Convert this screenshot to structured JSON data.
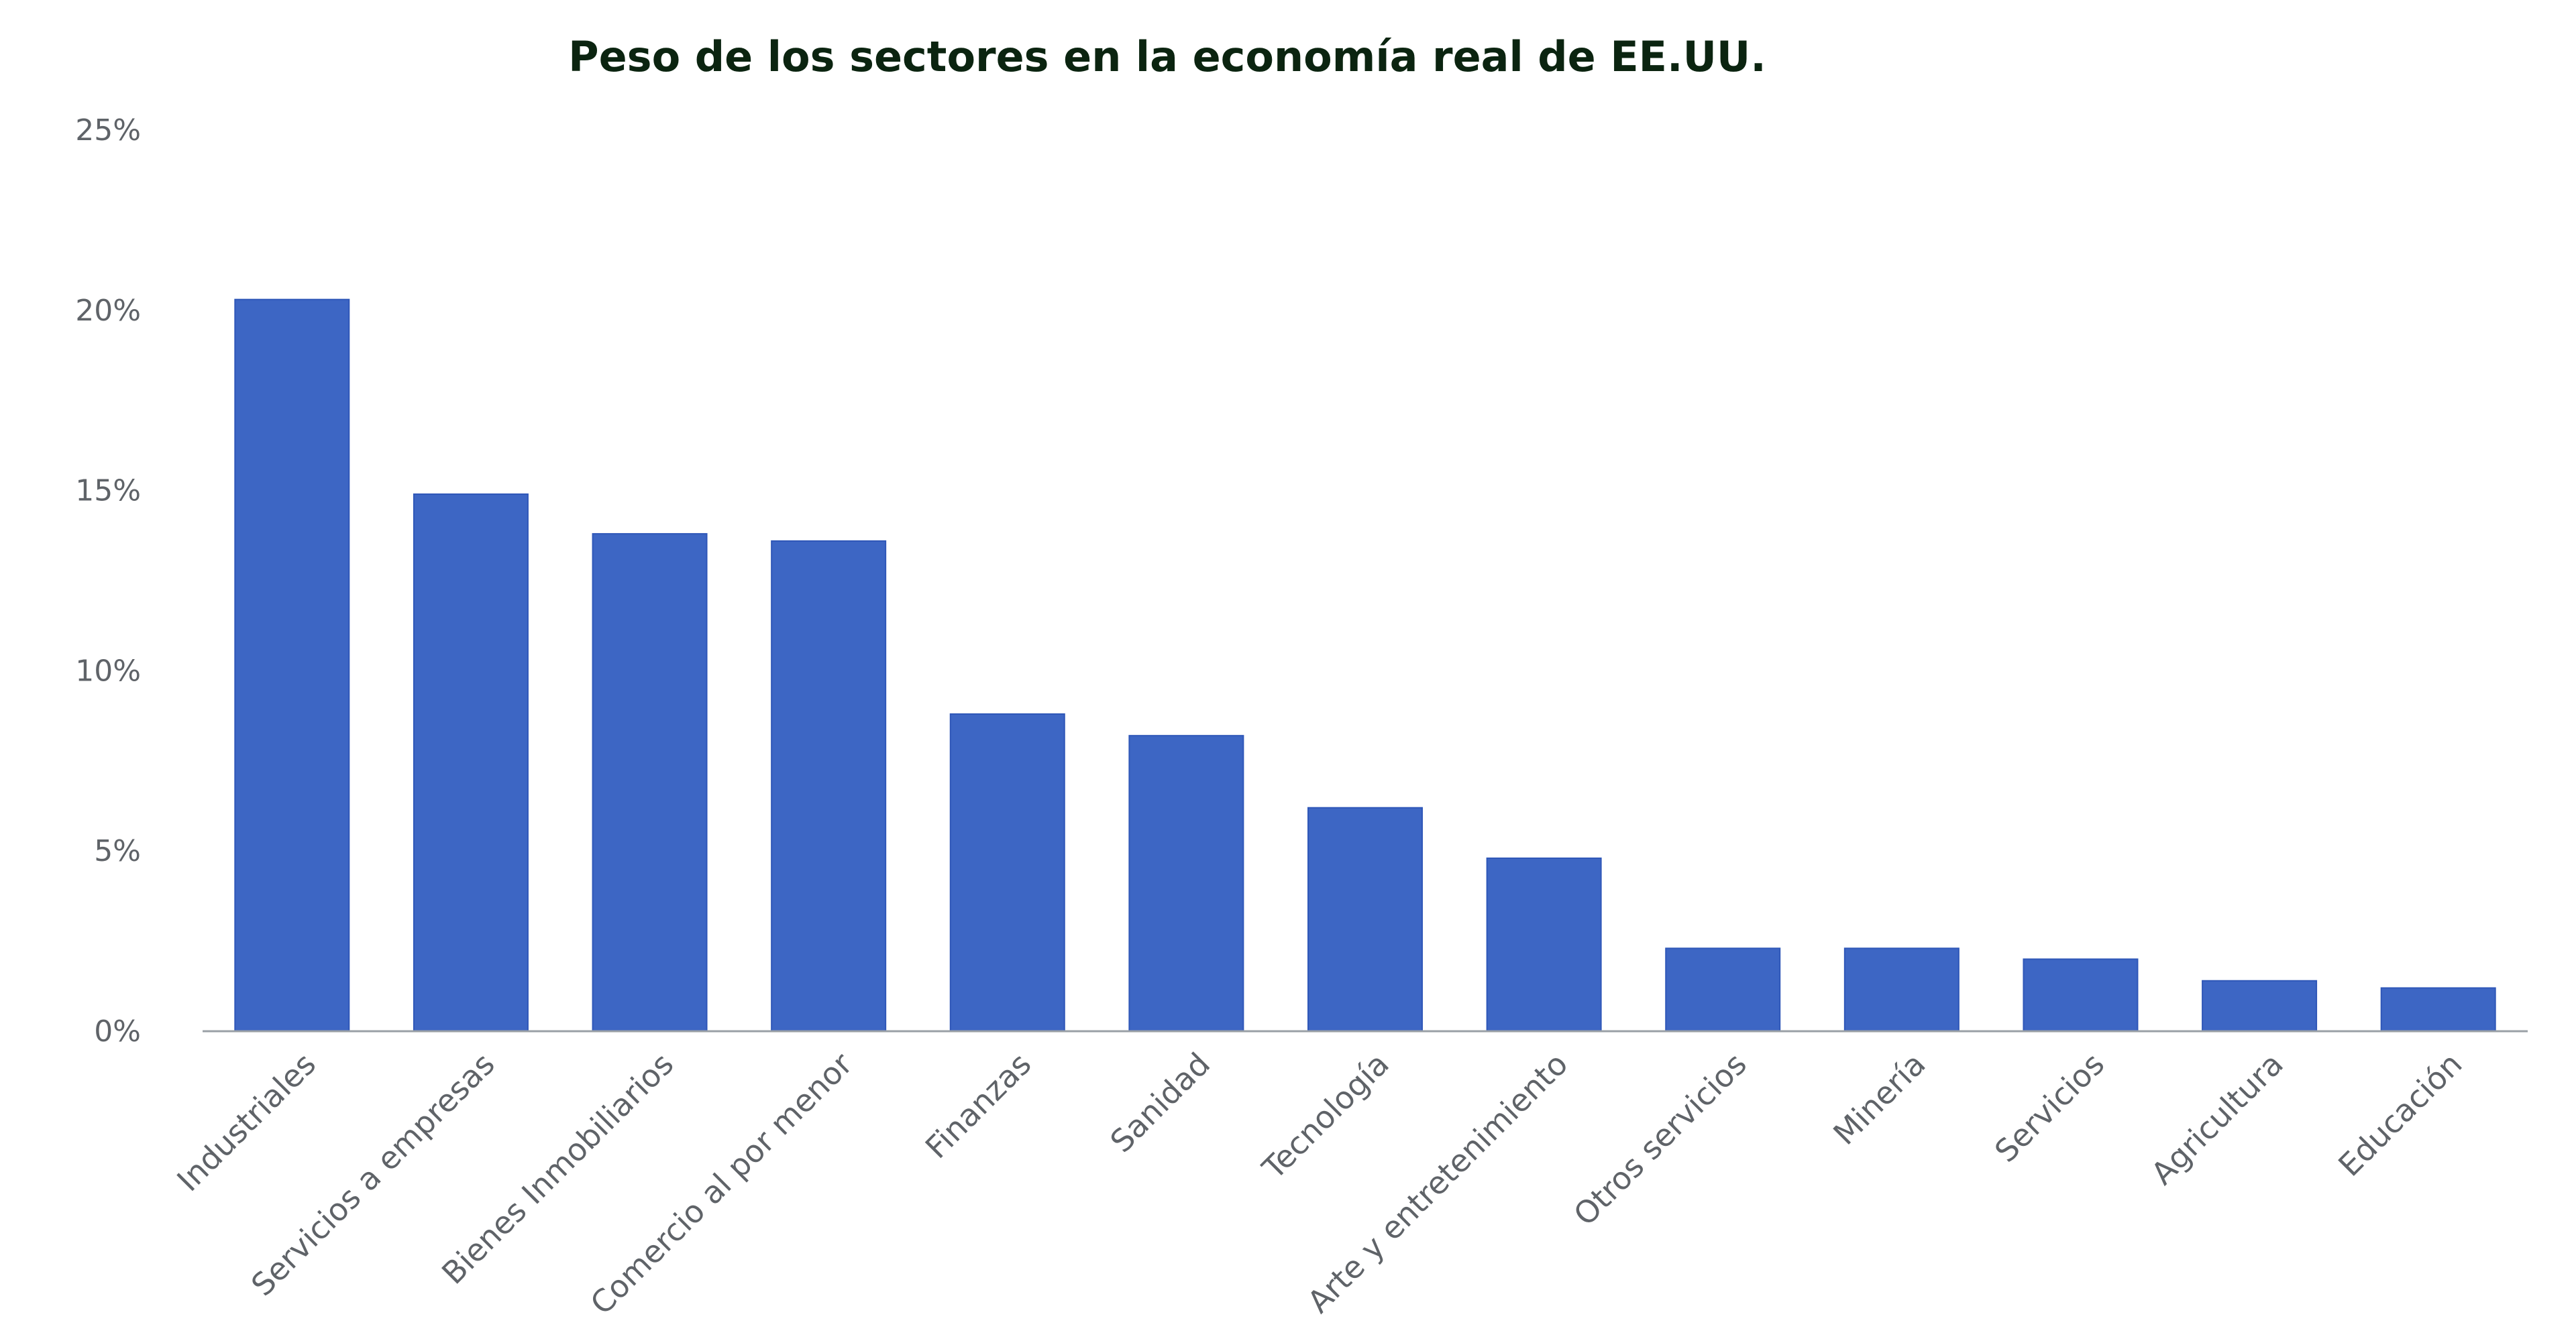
{
  "chart_data": {
    "type": "bar",
    "title": "Peso de los sectores en la economía real de EE.UU.",
    "xlabel": "",
    "ylabel": "",
    "categories": [
      "Industriales",
      "Servicios a empresas",
      "Bienes Inmobiliarios",
      "Comercio al por menor",
      "Finanzas",
      "Sanidad",
      "Tecnología",
      "Arte y entretenimiento",
      "Otros servicios",
      "Minería",
      "Servicios",
      "Agricultura",
      "Educación"
    ],
    "values": [
      20.3,
      14.9,
      13.8,
      13.6,
      8.8,
      8.2,
      6.2,
      4.8,
      2.3,
      2.3,
      2.0,
      1.4,
      1.2
    ],
    "ylim": [
      0,
      25
    ],
    "yticks": [
      0,
      5,
      10,
      15,
      20,
      25
    ],
    "ytick_labels": [
      "0%",
      "5%",
      "10%",
      "15%",
      "20%",
      "25%"
    ],
    "grid": false,
    "legend": "none",
    "colors": {
      "bar": "#3d66c4",
      "bar_edge": "#2f57b8",
      "axis": "#9aa0a6",
      "text": "#5f6368",
      "title": "#0b2410"
    }
  }
}
